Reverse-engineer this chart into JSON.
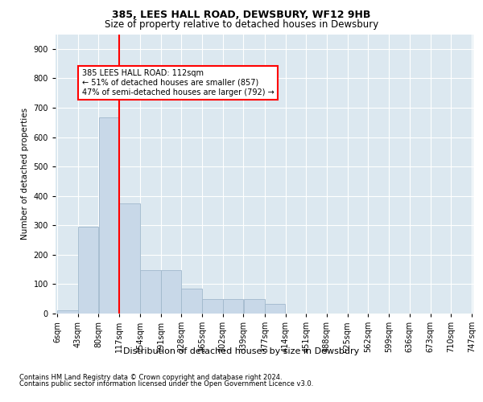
{
  "title1": "385, LEES HALL ROAD, DEWSBURY, WF12 9HB",
  "title2": "Size of property relative to detached houses in Dewsbury",
  "xlabel": "Distribution of detached houses by size in Dewsbury",
  "ylabel": "Number of detached properties",
  "footer1": "Contains HM Land Registry data © Crown copyright and database right 2024.",
  "footer2": "Contains public sector information licensed under the Open Government Licence v3.0.",
  "bin_edges": [
    6,
    43,
    80,
    117,
    154,
    191,
    228,
    265,
    302,
    339,
    377,
    414,
    451,
    488,
    525,
    562,
    599,
    636,
    673,
    710,
    747
  ],
  "bar_heights": [
    10,
    295,
    668,
    375,
    148,
    148,
    85,
    48,
    50,
    50,
    32,
    0,
    0,
    0,
    0,
    0,
    0,
    0,
    0,
    0
  ],
  "bar_color": "#c8d8e8",
  "bar_edgecolor": "#a0b8cc",
  "red_line_x": 117,
  "annotation_line1": "385 LEES HALL ROAD: 112sqm",
  "annotation_line2": "← 51% of detached houses are smaller (857)",
  "annotation_line3": "47% of semi-detached houses are larger (792) →",
  "ylim": [
    0,
    950
  ],
  "yticks": [
    0,
    100,
    200,
    300,
    400,
    500,
    600,
    700,
    800,
    900
  ],
  "background_color": "#dce8f0",
  "plot_background": "#dce8f0",
  "annotation_ystart": 830,
  "annotation_xstart": 50,
  "title1_fontsize": 9,
  "title2_fontsize": 8.5,
  "ylabel_fontsize": 7.5,
  "xlabel_fontsize": 8,
  "tick_fontsize": 7,
  "footer_fontsize": 6
}
